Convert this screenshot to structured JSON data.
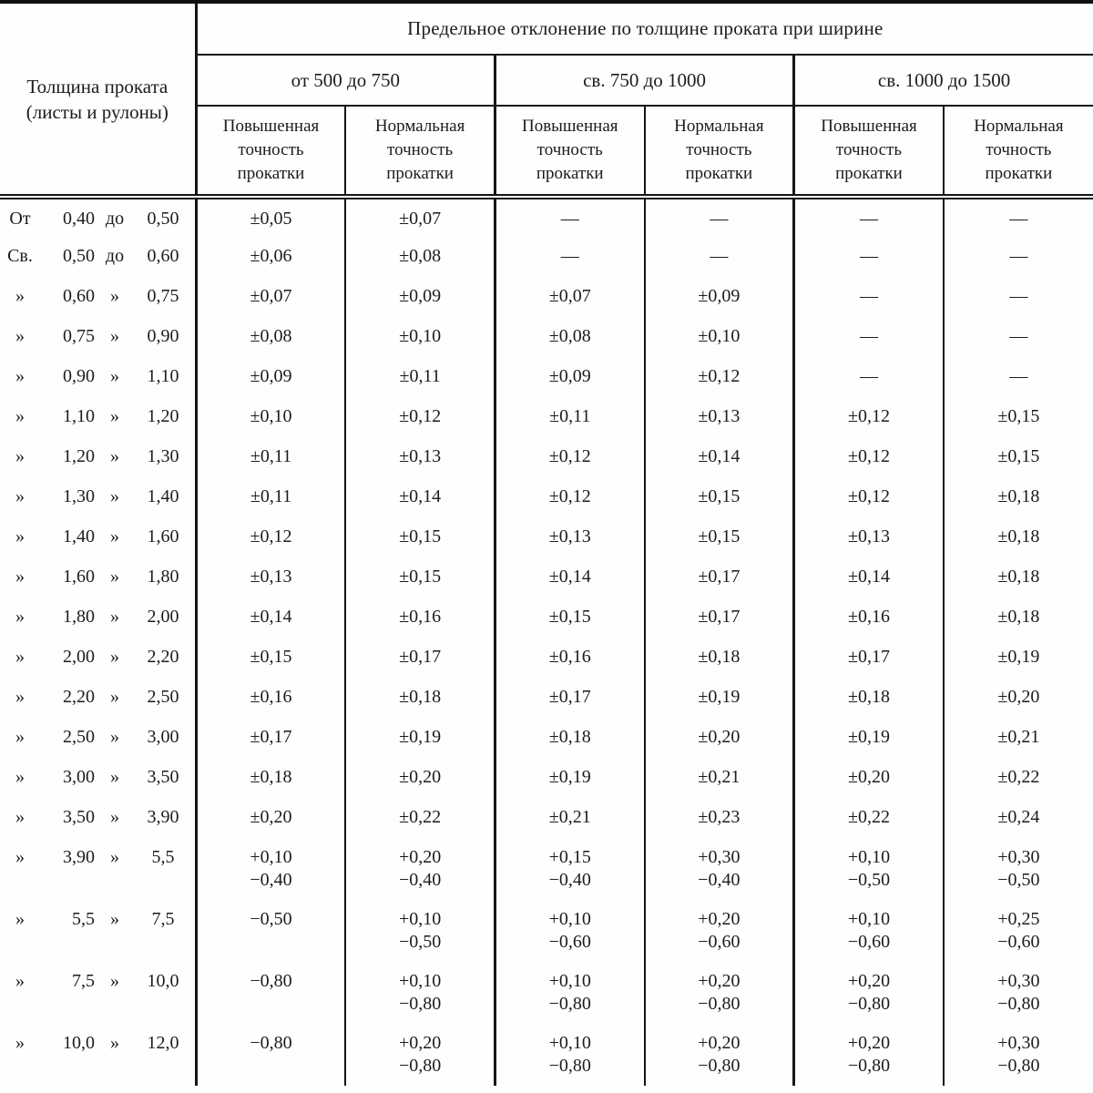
{
  "table": {
    "corner_header": "Толщина проката\n(листы и рулоны)",
    "main_header": "Предельное отклонение по толщине проката при ширине",
    "width_groups": [
      "от 500 до 750",
      "св. 750 до 1000",
      "св. 1000 до 1500"
    ],
    "accuracy_headers": [
      "Повышенная\nточность\nпрокатки",
      "Нормальная\nточность\nпрокатки"
    ],
    "empty_mark": "—",
    "rows": [
      {
        "prefix": "От",
        "from": "0,40",
        "sep": "до",
        "to": "0,50",
        "cells": [
          "±0,05",
          "±0,07",
          "—",
          "—",
          "—",
          "—"
        ]
      },
      {
        "prefix": "Св.",
        "from": "0,50",
        "sep": "до",
        "to": "0,60",
        "cells": [
          "±0,06",
          "±0,08",
          "—",
          "—",
          "—",
          "—"
        ]
      },
      {
        "prefix": "»",
        "from": "0,60",
        "sep": "»",
        "to": "0,75",
        "cells": [
          "±0,07",
          "±0,09",
          "±0,07",
          "±0,09",
          "—",
          "—"
        ]
      },
      {
        "prefix": "»",
        "from": "0,75",
        "sep": "»",
        "to": "0,90",
        "cells": [
          "±0,08",
          "±0,10",
          "±0,08",
          "±0,10",
          "—",
          "—"
        ]
      },
      {
        "prefix": "»",
        "from": "0,90",
        "sep": "»",
        "to": "1,10",
        "cells": [
          "±0,09",
          "±0,11",
          "±0,09",
          "±0,12",
          "—",
          "—"
        ]
      },
      {
        "prefix": "»",
        "from": "1,10",
        "sep": "»",
        "to": "1,20",
        "cells": [
          "±0,10",
          "±0,12",
          "±0,11",
          "±0,13",
          "±0,12",
          "±0,15"
        ]
      },
      {
        "prefix": "»",
        "from": "1,20",
        "sep": "»",
        "to": "1,30",
        "cells": [
          "±0,11",
          "±0,13",
          "±0,12",
          "±0,14",
          "±0,12",
          "±0,15"
        ]
      },
      {
        "prefix": "»",
        "from": "1,30",
        "sep": "»",
        "to": "1,40",
        "cells": [
          "±0,11",
          "±0,14",
          "±0,12",
          "±0,15",
          "±0,12",
          "±0,18"
        ]
      },
      {
        "prefix": "»",
        "from": "1,40",
        "sep": "»",
        "to": "1,60",
        "cells": [
          "±0,12",
          "±0,15",
          "±0,13",
          "±0,15",
          "±0,13",
          "±0,18"
        ]
      },
      {
        "prefix": "»",
        "from": "1,60",
        "sep": "»",
        "to": "1,80",
        "cells": [
          "±0,13",
          "±0,15",
          "±0,14",
          "±0,17",
          "±0,14",
          "±0,18"
        ]
      },
      {
        "prefix": "»",
        "from": "1,80",
        "sep": "»",
        "to": "2,00",
        "cells": [
          "±0,14",
          "±0,16",
          "±0,15",
          "±0,17",
          "±0,16",
          "±0,18"
        ]
      },
      {
        "prefix": "»",
        "from": "2,00",
        "sep": "»",
        "to": "2,20",
        "cells": [
          "±0,15",
          "±0,17",
          "±0,16",
          "±0,18",
          "±0,17",
          "±0,19"
        ]
      },
      {
        "prefix": "»",
        "from": "2,20",
        "sep": "»",
        "to": "2,50",
        "cells": [
          "±0,16",
          "±0,18",
          "±0,17",
          "±0,19",
          "±0,18",
          "±0,20"
        ]
      },
      {
        "prefix": "»",
        "from": "2,50",
        "sep": "»",
        "to": "3,00",
        "cells": [
          "±0,17",
          "±0,19",
          "±0,18",
          "±0,20",
          "±0,19",
          "±0,21"
        ]
      },
      {
        "prefix": "»",
        "from": "3,00",
        "sep": "»",
        "to": "3,50",
        "cells": [
          "±0,18",
          "±0,20",
          "±0,19",
          "±0,21",
          "±0,20",
          "±0,22"
        ]
      },
      {
        "prefix": "»",
        "from": "3,50",
        "sep": "»",
        "to": "3,90",
        "cells": [
          "±0,20",
          "±0,22",
          "±0,21",
          "±0,23",
          "±0,22",
          "±0,24"
        ]
      },
      {
        "prefix": "»",
        "from": "3,90",
        "sep": "»",
        "to": "5,5",
        "cells": [
          "+0,10\n−0,40",
          "+0,20\n−0,40",
          "+0,15\n−0,40",
          "+0,30\n−0,40",
          "+0,10\n−0,50",
          "+0,30\n−0,50"
        ]
      },
      {
        "prefix": "»",
        "from": "5,5",
        "sep": "»",
        "to": "7,5",
        "cells": [
          "−0,50",
          "+0,10\n−0,50",
          "+0,10\n−0,60",
          "+0,20\n−0,60",
          "+0,10\n−0,60",
          "+0,25\n−0,60"
        ]
      },
      {
        "prefix": "»",
        "from": "7,5",
        "sep": "»",
        "to": "10,0",
        "cells": [
          "−0,80",
          "+0,10\n−0,80",
          "+0,10\n−0,80",
          "+0,20\n−0,80",
          "+0,20\n−0,80",
          "+0,30\n−0,80"
        ]
      },
      {
        "prefix": "»",
        "from": "10,0",
        "sep": "»",
        "to": "12,0",
        "cells": [
          "−0,80",
          "+0,20\n−0,80",
          "+0,10\n−0,80",
          "+0,20\n−0,80",
          "+0,20\n−0,80",
          "+0,30\n−0,80"
        ]
      }
    ]
  }
}
